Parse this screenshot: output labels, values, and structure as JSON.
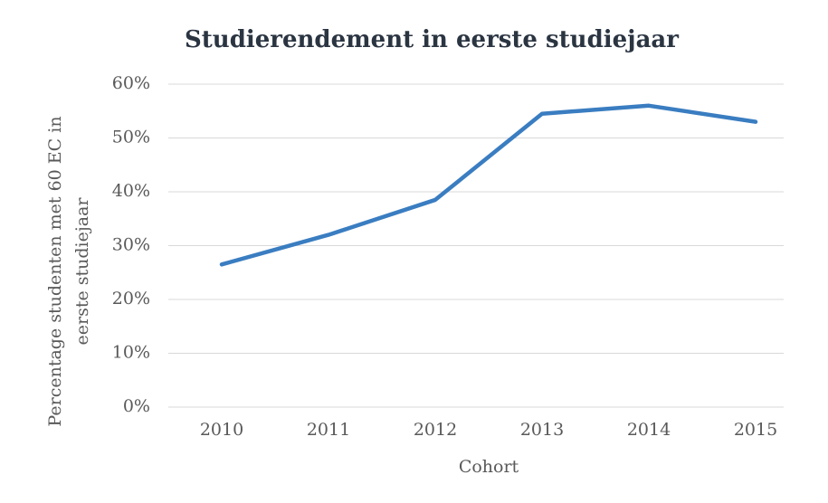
{
  "chart_data": {
    "type": "line",
    "title": "Studierendement in eerste studiejaar",
    "xlabel": "Cohort",
    "ylabel": [
      "Percentage studenten met 60 EC in",
      "eerste studiejaar"
    ],
    "categories": [
      "2010",
      "2011",
      "2012",
      "2013",
      "2014",
      "2015"
    ],
    "series": [
      {
        "name": "Studierendement",
        "color": "#3a7dc1",
        "values": [
          26.5,
          32,
          38.5,
          54.5,
          56,
          53
        ]
      }
    ],
    "ylim": [
      0,
      60
    ],
    "yticks": [
      {
        "value": 0,
        "label": "0%"
      },
      {
        "value": 10,
        "label": "10%"
      },
      {
        "value": 20,
        "label": "20%"
      },
      {
        "value": 30,
        "label": "30%"
      },
      {
        "value": 40,
        "label": "40%"
      },
      {
        "value": 50,
        "label": "50%"
      },
      {
        "value": 60,
        "label": "60%"
      }
    ],
    "grid": true
  }
}
